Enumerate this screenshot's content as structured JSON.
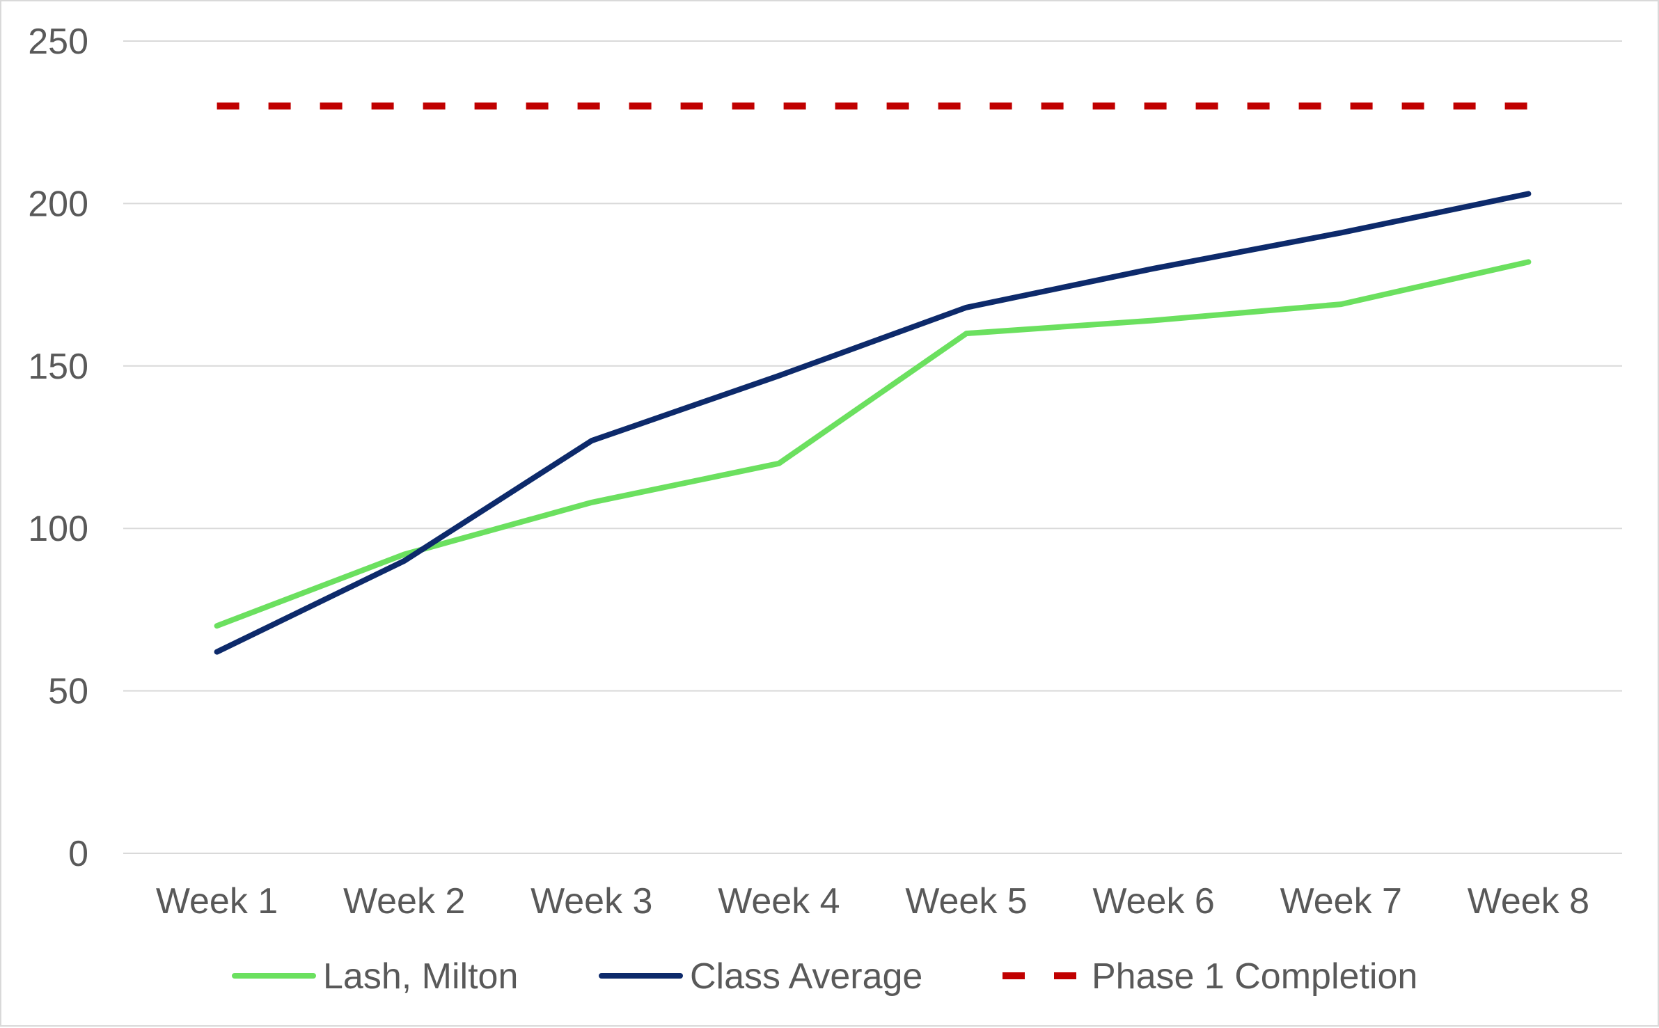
{
  "chart_data": {
    "type": "line",
    "title": "",
    "xlabel": "",
    "ylabel": "",
    "categories": [
      "Week 1",
      "Week 2",
      "Week 3",
      "Week 4",
      "Week 5",
      "Week 6",
      "Week 7",
      "Week 8"
    ],
    "ylim": [
      0,
      250
    ],
    "yticks": [
      0,
      50,
      100,
      150,
      200,
      250
    ],
    "ytick_labels": [
      "0",
      "50",
      "100",
      "150",
      "200",
      "250"
    ],
    "grid": "horizontal",
    "legend_position": "bottom",
    "series": [
      {
        "name": "Lash, Milton",
        "color": "#6be05f",
        "style": "solid",
        "values": [
          70,
          92,
          108,
          120,
          160,
          164,
          169,
          182
        ]
      },
      {
        "name": "Class Average",
        "color": "#0d2a6b",
        "style": "solid",
        "values": [
          62,
          90,
          127,
          147,
          168,
          180,
          191,
          203
        ]
      },
      {
        "name": "Phase 1 Completion",
        "color": "#c00000",
        "style": "dashed",
        "values": [
          230,
          230,
          230,
          230,
          230,
          230,
          230,
          230
        ]
      }
    ]
  }
}
